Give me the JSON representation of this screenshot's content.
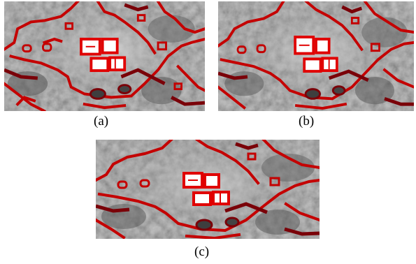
{
  "figure": {
    "panels": [
      {
        "id": "a",
        "caption": "(a)"
      },
      {
        "id": "b",
        "caption": "(b)"
      },
      {
        "id": "c",
        "caption": "(c)"
      }
    ]
  },
  "colors": {
    "contour": "#c40000",
    "contour_dark": "#7a0008",
    "building_fill": "#ffffff",
    "terrain_light": "#bdbdbd",
    "terrain_mid": "#9a9a9a",
    "terrain_dark": "#6a6a6a"
  }
}
